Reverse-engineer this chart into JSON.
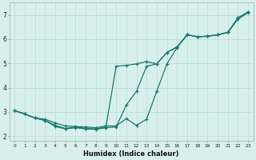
{
  "xlabel": "Humidex (Indice chaleur)",
  "bg_color": "#d8f0ec",
  "line_color": "#1a7a6e",
  "grid_color": "#b8d8d0",
  "xlim": [
    -0.5,
    23.5
  ],
  "ylim": [
    1.8,
    7.5
  ],
  "x_ticks": [
    0,
    1,
    2,
    3,
    4,
    5,
    6,
    7,
    8,
    9,
    10,
    11,
    12,
    13,
    14,
    15,
    16,
    17,
    18,
    19,
    20,
    21,
    22,
    23
  ],
  "y_ticks": [
    2,
    3,
    4,
    5,
    6,
    7
  ],
  "line1_x": [
    0,
    1,
    2,
    3,
    4,
    5,
    6,
    7,
    8,
    9,
    10,
    11,
    12,
    13,
    14,
    15,
    16,
    17,
    18,
    19,
    20,
    21,
    22,
    23
  ],
  "line1_y": [
    3.05,
    2.92,
    2.75,
    2.7,
    2.55,
    2.42,
    2.4,
    2.38,
    2.35,
    2.42,
    2.42,
    2.72,
    2.45,
    2.7,
    3.85,
    4.98,
    5.65,
    6.18,
    6.1,
    6.12,
    6.18,
    6.28,
    6.82,
    7.1
  ],
  "line2_x": [
    0,
    1,
    2,
    3,
    4,
    5,
    6,
    7,
    8,
    9,
    10,
    11,
    12,
    13,
    14,
    15,
    16,
    17,
    18,
    19,
    20,
    21,
    22,
    23
  ],
  "line2_y": [
    3.05,
    2.92,
    2.75,
    2.65,
    2.45,
    2.32,
    2.38,
    2.32,
    2.3,
    2.38,
    4.88,
    4.92,
    4.98,
    5.08,
    4.98,
    5.45,
    5.68,
    6.18,
    6.1,
    6.12,
    6.18,
    6.28,
    6.88,
    7.12
  ],
  "line3_x": [
    0,
    1,
    2,
    3,
    4,
    5,
    6,
    7,
    8,
    9,
    10,
    11,
    12,
    13,
    14,
    15,
    16,
    17,
    18,
    19,
    20,
    21,
    22,
    23
  ],
  "line3_y": [
    3.05,
    2.92,
    2.75,
    2.65,
    2.4,
    2.3,
    2.35,
    2.3,
    2.28,
    2.35,
    2.38,
    3.28,
    3.85,
    4.88,
    4.98,
    5.45,
    5.68,
    6.18,
    6.1,
    6.12,
    6.18,
    6.28,
    6.88,
    7.12
  ]
}
